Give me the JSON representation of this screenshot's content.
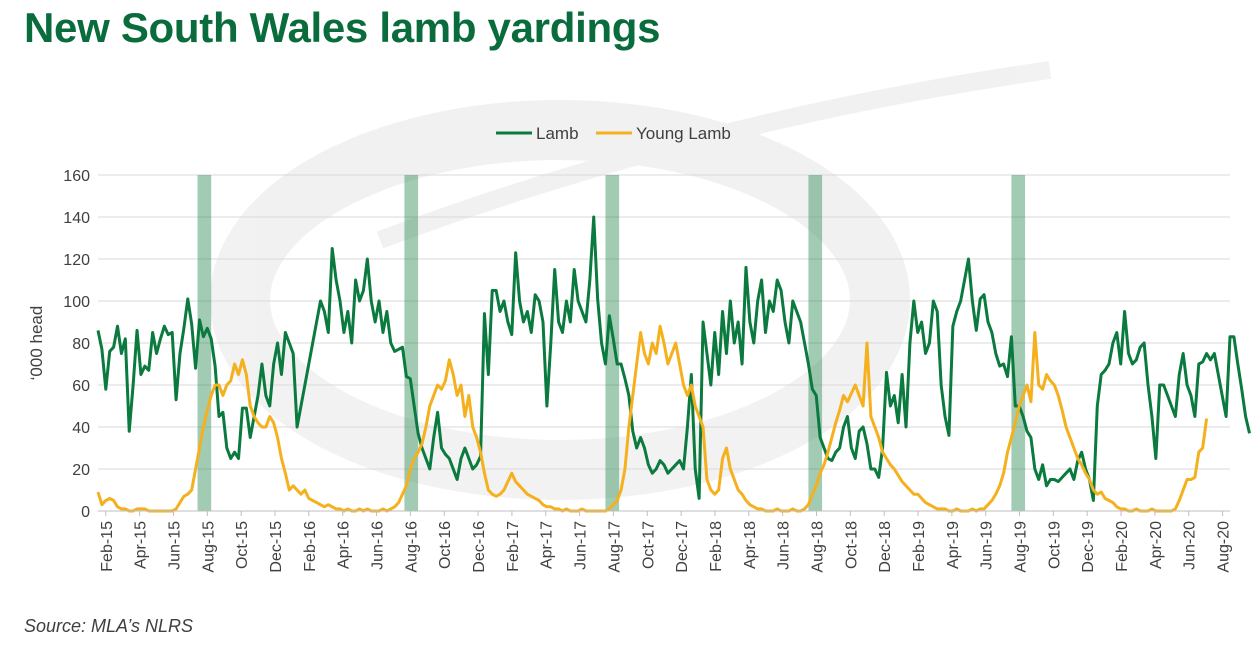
{
  "title": "New South Wales lamb yardings",
  "source": "Source: MLA’s NLRS",
  "chart_data": {
    "type": "line",
    "ylabel": "‘000 head",
    "ylim": [
      0,
      160
    ],
    "yticks": [
      0,
      20,
      40,
      60,
      80,
      100,
      120,
      140,
      160
    ],
    "x_tick_labels": [
      "Feb-15",
      "Apr-15",
      "Jun-15",
      "Aug-15",
      "Oct-15",
      "Dec-15",
      "Feb-16",
      "Apr-16",
      "Jun-16",
      "Aug-16",
      "Oct-16",
      "Dec-16",
      "Feb-17",
      "Apr-17",
      "Jun-17",
      "Aug-17",
      "Oct-17",
      "Dec-17",
      "Feb-18",
      "Apr-18",
      "Jun-18",
      "Aug-18",
      "Oct-18",
      "Dec-18",
      "Feb-19",
      "Apr-19",
      "Jun-19",
      "Aug-19",
      "Oct-19",
      "Dec-19",
      "Feb-20",
      "Apr-20",
      "Jun-20",
      "Aug-20"
    ],
    "x_range_weeks": [
      0,
      290
    ],
    "grid": "horizontal",
    "legend_position": "top-center",
    "highlight_bands": [
      {
        "start_week": 25.5,
        "end_week": 29
      },
      {
        "start_week": 78.5,
        "end_week": 82
      },
      {
        "start_week": 130,
        "end_week": 133.5
      },
      {
        "start_week": 182,
        "end_week": 185.5
      },
      {
        "start_week": 234,
        "end_week": 237.5
      }
    ],
    "series": [
      {
        "name": "Lamb",
        "color": "#0a7a3e",
        "values": [
          86,
          77,
          58,
          76,
          78,
          88,
          75,
          82,
          38,
          60,
          86,
          65,
          69,
          67,
          85,
          75,
          82,
          88,
          84,
          85,
          53,
          75,
          87,
          101,
          89,
          68,
          91,
          83,
          87,
          82,
          69,
          45,
          47,
          30,
          25,
          28,
          25,
          49,
          49,
          35,
          45,
          55,
          70,
          55,
          50,
          70,
          80,
          65,
          85,
          80,
          75,
          40,
          50,
          60,
          70,
          80,
          90,
          100,
          95,
          85,
          125,
          110,
          100,
          85,
          95,
          80,
          110,
          100,
          105,
          120,
          100,
          90,
          100,
          85,
          95,
          80,
          76,
          77,
          78,
          64,
          63,
          50,
          37,
          30,
          25,
          20,
          35,
          47,
          30,
          27,
          25,
          20,
          15,
          25,
          30,
          25,
          20,
          22,
          26,
          94,
          65,
          105,
          105,
          95,
          100,
          90,
          84,
          123,
          100,
          90,
          95,
          85,
          103,
          100,
          90,
          50,
          80,
          115,
          90,
          85,
          100,
          90,
          115,
          100,
          95,
          90,
          110,
          140,
          101,
          80,
          70,
          93,
          82,
          70,
          70,
          63,
          55,
          38,
          30,
          35,
          30,
          22,
          18,
          20,
          24,
          22,
          18,
          20,
          22,
          24,
          20,
          40,
          65,
          20,
          6,
          90,
          75,
          60,
          85,
          65,
          95,
          75,
          100,
          80,
          90,
          70,
          116,
          90,
          80,
          100,
          110,
          85,
          100,
          95,
          110,
          105,
          90,
          80,
          100,
          95,
          90,
          80,
          70,
          58,
          55,
          35,
          30,
          25,
          24,
          28,
          30,
          40,
          45,
          30,
          25,
          38,
          40,
          32,
          20,
          20,
          16,
          30,
          66,
          50,
          55,
          42,
          65,
          40,
          80,
          100,
          85,
          90,
          75,
          80,
          100,
          95,
          60,
          45,
          36,
          88,
          95,
          100,
          110,
          120,
          100,
          86,
          101,
          103,
          90,
          85,
          75,
          69,
          70,
          64,
          83,
          50,
          50,
          45,
          38,
          35,
          20,
          15,
          22,
          12,
          15,
          15,
          14,
          16,
          18,
          20,
          15,
          24,
          28,
          20,
          15,
          5,
          50,
          65,
          67,
          70,
          80,
          85,
          70,
          95,
          75,
          70,
          72,
          78,
          80,
          60,
          45,
          25,
          60,
          60,
          55,
          50,
          45,
          65,
          75,
          60,
          55,
          45,
          70,
          71,
          75,
          72,
          75,
          65,
          55,
          45,
          83,
          83,
          70,
          58,
          45,
          37
        ]
      },
      {
        "name": "Young Lamb",
        "color": "#f5b01e",
        "values": [
          9,
          3,
          5,
          6,
          5,
          2,
          1,
          1,
          0,
          0,
          1,
          1,
          1,
          0,
          0,
          0,
          0,
          0,
          0,
          0,
          1,
          4,
          7,
          8,
          10,
          20,
          30,
          40,
          48,
          55,
          60,
          60,
          55,
          60,
          62,
          70,
          65,
          72,
          65,
          50,
          45,
          42,
          40,
          40,
          45,
          42,
          35,
          25,
          18,
          10,
          12,
          10,
          8,
          10,
          6,
          5,
          4,
          3,
          2,
          3,
          2,
          1,
          1,
          0,
          1,
          0,
          0,
          1,
          0,
          1,
          0,
          0,
          0,
          1,
          0,
          1,
          2,
          4,
          8,
          12,
          20,
          25,
          28,
          32,
          40,
          50,
          55,
          60,
          58,
          62,
          72,
          65,
          55,
          60,
          45,
          55,
          40,
          35,
          28,
          18,
          10,
          8,
          7,
          8,
          10,
          14,
          18,
          14,
          12,
          10,
          8,
          7,
          6,
          5,
          3,
          2,
          2,
          1,
          1,
          0,
          1,
          0,
          0,
          0,
          1,
          0,
          0,
          0,
          0,
          0,
          0,
          1,
          3,
          5,
          10,
          20,
          40,
          55,
          70,
          85,
          75,
          70,
          80,
          75,
          88,
          80,
          70,
          75,
          80,
          70,
          60,
          55,
          60,
          50,
          45,
          40,
          15,
          10,
          8,
          10,
          25,
          30,
          20,
          15,
          10,
          8,
          5,
          3,
          2,
          1,
          1,
          0,
          0,
          0,
          1,
          0,
          0,
          0,
          1,
          0,
          0,
          1,
          3,
          8,
          12,
          18,
          22,
          28,
          35,
          42,
          48,
          55,
          52,
          56,
          60,
          55,
          50,
          80,
          45,
          40,
          35,
          28,
          25,
          22,
          20,
          17,
          14,
          12,
          10,
          8,
          8,
          6,
          4,
          3,
          2,
          1,
          1,
          1,
          0,
          0,
          1,
          0,
          0,
          0,
          1,
          0,
          1,
          1,
          3,
          5,
          8,
          12,
          18,
          28,
          35,
          42,
          50,
          55,
          60,
          52,
          85,
          60,
          58,
          65,
          62,
          60,
          55,
          48,
          40,
          35,
          30,
          25,
          22,
          18,
          15,
          10,
          8,
          9,
          6,
          5,
          4,
          2,
          1,
          1,
          0,
          0,
          1,
          0,
          0,
          0,
          1,
          0,
          0,
          0,
          0,
          0,
          1,
          5,
          10,
          15,
          15,
          16,
          28,
          30,
          44
        ]
      }
    ]
  }
}
